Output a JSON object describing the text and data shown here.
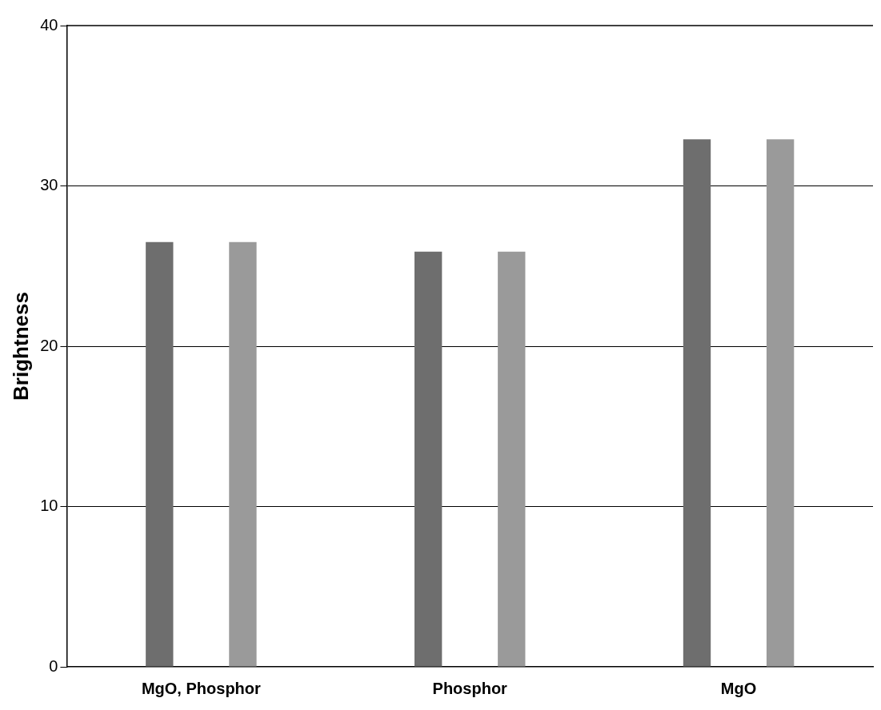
{
  "chart_data": {
    "type": "bar",
    "ylabel": "Brightness",
    "categories": [
      "MgO, Phosphor",
      "Phosphor",
      "MgO"
    ],
    "series": [
      {
        "color": "#6e6e6e",
        "values": [
          26.5,
          25.9,
          32.9
        ]
      },
      {
        "color": "#9a9a9a",
        "values": [
          26.5,
          25.9,
          32.9
        ]
      }
    ],
    "ylim": [
      0,
      40
    ],
    "yticks": [
      0,
      10,
      20,
      30,
      40
    ],
    "grid": "y",
    "legend": false
  }
}
